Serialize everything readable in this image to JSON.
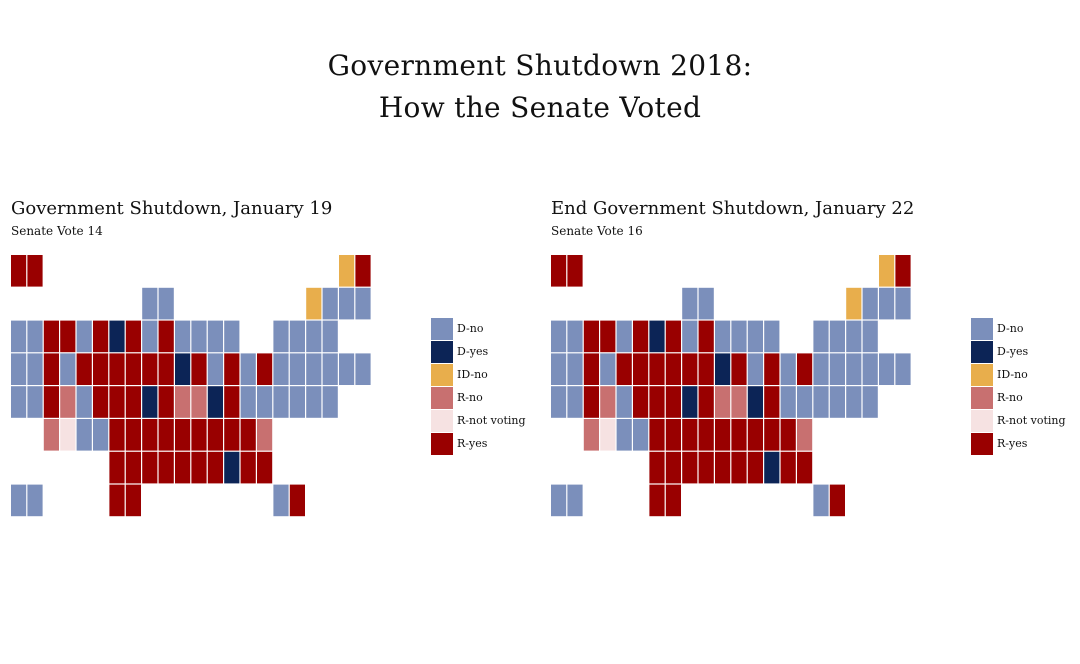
{
  "title_lines": [
    "Government Shutdown 2018:",
    "How the Senate Voted"
  ],
  "colors": {
    "D-no": "#7b8fbb",
    "D-yes": "#0c2456",
    "ID-no": "#e8ae4c",
    "R-no": "#c87070",
    "R-not voting": "#f6e2e2",
    "R-yes": "#990000"
  },
  "chart_data": [
    {
      "type": "heatmap",
      "title": "Government Shutdown, January 19",
      "subtitle": "Senate Vote 14",
      "legend": [
        "D-no",
        "D-yes",
        "ID-no",
        "R-no",
        "R-not voting",
        "R-yes"
      ],
      "rows": [
        [
          [
            0,
            "R-yes"
          ],
          [
            1,
            "R-yes"
          ],
          [
            20,
            "ID-no"
          ],
          [
            21,
            "R-yes"
          ]
        ],
        [
          [
            8,
            "D-no"
          ],
          [
            9,
            "D-no"
          ],
          [
            18,
            "ID-no"
          ],
          [
            19,
            "D-no"
          ],
          [
            20,
            "D-no"
          ],
          [
            21,
            "D-no"
          ]
        ],
        [
          [
            0,
            "D-no"
          ],
          [
            1,
            "D-no"
          ],
          [
            2,
            "R-yes"
          ],
          [
            3,
            "R-yes"
          ],
          [
            4,
            "D-no"
          ],
          [
            5,
            "R-yes"
          ],
          [
            6,
            "D-yes"
          ],
          [
            7,
            "R-yes"
          ],
          [
            8,
            "D-no"
          ],
          [
            9,
            "R-yes"
          ],
          [
            10,
            "D-no"
          ],
          [
            11,
            "D-no"
          ],
          [
            12,
            "D-no"
          ],
          [
            13,
            "D-no"
          ],
          [
            16,
            "D-no"
          ],
          [
            17,
            "D-no"
          ],
          [
            18,
            "D-no"
          ],
          [
            19,
            "D-no"
          ]
        ],
        [
          [
            0,
            "D-no"
          ],
          [
            1,
            "D-no"
          ],
          [
            2,
            "R-yes"
          ],
          [
            3,
            "D-no"
          ],
          [
            4,
            "R-yes"
          ],
          [
            5,
            "R-yes"
          ],
          [
            6,
            "R-yes"
          ],
          [
            7,
            "R-yes"
          ],
          [
            8,
            "R-yes"
          ],
          [
            9,
            "R-yes"
          ],
          [
            10,
            "D-yes"
          ],
          [
            11,
            "R-yes"
          ],
          [
            12,
            "D-no"
          ],
          [
            13,
            "R-yes"
          ],
          [
            14,
            "D-no"
          ],
          [
            15,
            "R-yes"
          ],
          [
            16,
            "D-no"
          ],
          [
            17,
            "D-no"
          ],
          [
            18,
            "D-no"
          ],
          [
            19,
            "D-no"
          ],
          [
            20,
            "D-no"
          ],
          [
            21,
            "D-no"
          ]
        ],
        [
          [
            0,
            "D-no"
          ],
          [
            1,
            "D-no"
          ],
          [
            2,
            "R-yes"
          ],
          [
            3,
            "R-no"
          ],
          [
            4,
            "D-no"
          ],
          [
            5,
            "R-yes"
          ],
          [
            6,
            "R-yes"
          ],
          [
            7,
            "R-yes"
          ],
          [
            8,
            "D-yes"
          ],
          [
            9,
            "R-yes"
          ],
          [
            10,
            "R-no"
          ],
          [
            11,
            "R-no"
          ],
          [
            12,
            "D-yes"
          ],
          [
            13,
            "R-yes"
          ],
          [
            14,
            "D-no"
          ],
          [
            15,
            "D-no"
          ],
          [
            16,
            "D-no"
          ],
          [
            17,
            "D-no"
          ],
          [
            18,
            "D-no"
          ],
          [
            19,
            "D-no"
          ]
        ],
        [
          [
            2,
            "R-no"
          ],
          [
            3,
            "R-not voting"
          ],
          [
            4,
            "D-no"
          ],
          [
            5,
            "D-no"
          ],
          [
            6,
            "R-yes"
          ],
          [
            7,
            "R-yes"
          ],
          [
            8,
            "R-yes"
          ],
          [
            9,
            "R-yes"
          ],
          [
            10,
            "R-yes"
          ],
          [
            11,
            "R-yes"
          ],
          [
            12,
            "R-yes"
          ],
          [
            13,
            "R-yes"
          ],
          [
            14,
            "R-yes"
          ],
          [
            15,
            "R-no"
          ]
        ],
        [
          [
            6,
            "R-yes"
          ],
          [
            7,
            "R-yes"
          ],
          [
            8,
            "R-yes"
          ],
          [
            9,
            "R-yes"
          ],
          [
            10,
            "R-yes"
          ],
          [
            11,
            "R-yes"
          ],
          [
            12,
            "R-yes"
          ],
          [
            13,
            "D-yes"
          ],
          [
            14,
            "R-yes"
          ],
          [
            15,
            "R-yes"
          ]
        ],
        [
          [
            0,
            "D-no"
          ],
          [
            1,
            "D-no"
          ],
          [
            6,
            "R-yes"
          ],
          [
            7,
            "R-yes"
          ],
          [
            16,
            "D-no"
          ],
          [
            17,
            "R-yes"
          ]
        ]
      ]
    },
    {
      "type": "heatmap",
      "title": "End Government Shutdown, January 22",
      "subtitle": "Senate Vote 16",
      "legend": [
        "D-no",
        "D-yes",
        "ID-no",
        "R-no",
        "R-not voting",
        "R-yes"
      ],
      "rows": [
        [
          [
            0,
            "R-yes"
          ],
          [
            1,
            "R-yes"
          ],
          [
            20,
            "ID-no"
          ],
          [
            21,
            "R-yes"
          ]
        ],
        [
          [
            8,
            "D-no"
          ],
          [
            9,
            "D-no"
          ],
          [
            18,
            "ID-no"
          ],
          [
            19,
            "D-no"
          ],
          [
            20,
            "D-no"
          ],
          [
            21,
            "D-no"
          ]
        ],
        [
          [
            0,
            "D-no"
          ],
          [
            1,
            "D-no"
          ],
          [
            2,
            "R-yes"
          ],
          [
            3,
            "R-yes"
          ],
          [
            4,
            "D-no"
          ],
          [
            5,
            "R-yes"
          ],
          [
            6,
            "D-yes"
          ],
          [
            7,
            "R-yes"
          ],
          [
            8,
            "D-no"
          ],
          [
            9,
            "R-yes"
          ],
          [
            10,
            "D-no"
          ],
          [
            11,
            "D-no"
          ],
          [
            12,
            "D-no"
          ],
          [
            13,
            "D-no"
          ],
          [
            16,
            "D-no"
          ],
          [
            17,
            "D-no"
          ],
          [
            18,
            "D-no"
          ],
          [
            19,
            "D-no"
          ]
        ],
        [
          [
            0,
            "D-no"
          ],
          [
            1,
            "D-no"
          ],
          [
            2,
            "R-yes"
          ],
          [
            3,
            "D-no"
          ],
          [
            4,
            "R-yes"
          ],
          [
            5,
            "R-yes"
          ],
          [
            6,
            "R-yes"
          ],
          [
            7,
            "R-yes"
          ],
          [
            8,
            "R-yes"
          ],
          [
            9,
            "R-yes"
          ],
          [
            10,
            "D-yes"
          ],
          [
            11,
            "R-yes"
          ],
          [
            12,
            "D-no"
          ],
          [
            13,
            "R-yes"
          ],
          [
            14,
            "D-no"
          ],
          [
            15,
            "R-yes"
          ],
          [
            16,
            "D-no"
          ],
          [
            17,
            "D-no"
          ],
          [
            18,
            "D-no"
          ],
          [
            19,
            "D-no"
          ],
          [
            20,
            "D-no"
          ],
          [
            21,
            "D-no"
          ]
        ],
        [
          [
            0,
            "D-no"
          ],
          [
            1,
            "D-no"
          ],
          [
            2,
            "R-yes"
          ],
          [
            3,
            "R-no"
          ],
          [
            4,
            "D-no"
          ],
          [
            5,
            "R-yes"
          ],
          [
            6,
            "R-yes"
          ],
          [
            7,
            "R-yes"
          ],
          [
            8,
            "D-yes"
          ],
          [
            9,
            "R-yes"
          ],
          [
            10,
            "R-no"
          ],
          [
            11,
            "R-no"
          ],
          [
            12,
            "D-yes"
          ],
          [
            13,
            "R-yes"
          ],
          [
            14,
            "D-no"
          ],
          [
            15,
            "D-no"
          ],
          [
            16,
            "D-no"
          ],
          [
            17,
            "D-no"
          ],
          [
            18,
            "D-no"
          ],
          [
            19,
            "D-no"
          ]
        ],
        [
          [
            2,
            "R-no"
          ],
          [
            3,
            "R-not voting"
          ],
          [
            4,
            "D-no"
          ],
          [
            5,
            "D-no"
          ],
          [
            6,
            "R-yes"
          ],
          [
            7,
            "R-yes"
          ],
          [
            8,
            "R-yes"
          ],
          [
            9,
            "R-yes"
          ],
          [
            10,
            "R-yes"
          ],
          [
            11,
            "R-yes"
          ],
          [
            12,
            "R-yes"
          ],
          [
            13,
            "R-yes"
          ],
          [
            14,
            "R-yes"
          ],
          [
            15,
            "R-no"
          ]
        ],
        [
          [
            6,
            "R-yes"
          ],
          [
            7,
            "R-yes"
          ],
          [
            8,
            "R-yes"
          ],
          [
            9,
            "R-yes"
          ],
          [
            10,
            "R-yes"
          ],
          [
            11,
            "R-yes"
          ],
          [
            12,
            "R-yes"
          ],
          [
            13,
            "D-yes"
          ],
          [
            14,
            "R-yes"
          ],
          [
            15,
            "R-yes"
          ]
        ],
        [
          [
            0,
            "D-no"
          ],
          [
            1,
            "D-no"
          ],
          [
            6,
            "R-yes"
          ],
          [
            7,
            "R-yes"
          ],
          [
            16,
            "D-no"
          ],
          [
            17,
            "R-yes"
          ]
        ]
      ]
    }
  ]
}
